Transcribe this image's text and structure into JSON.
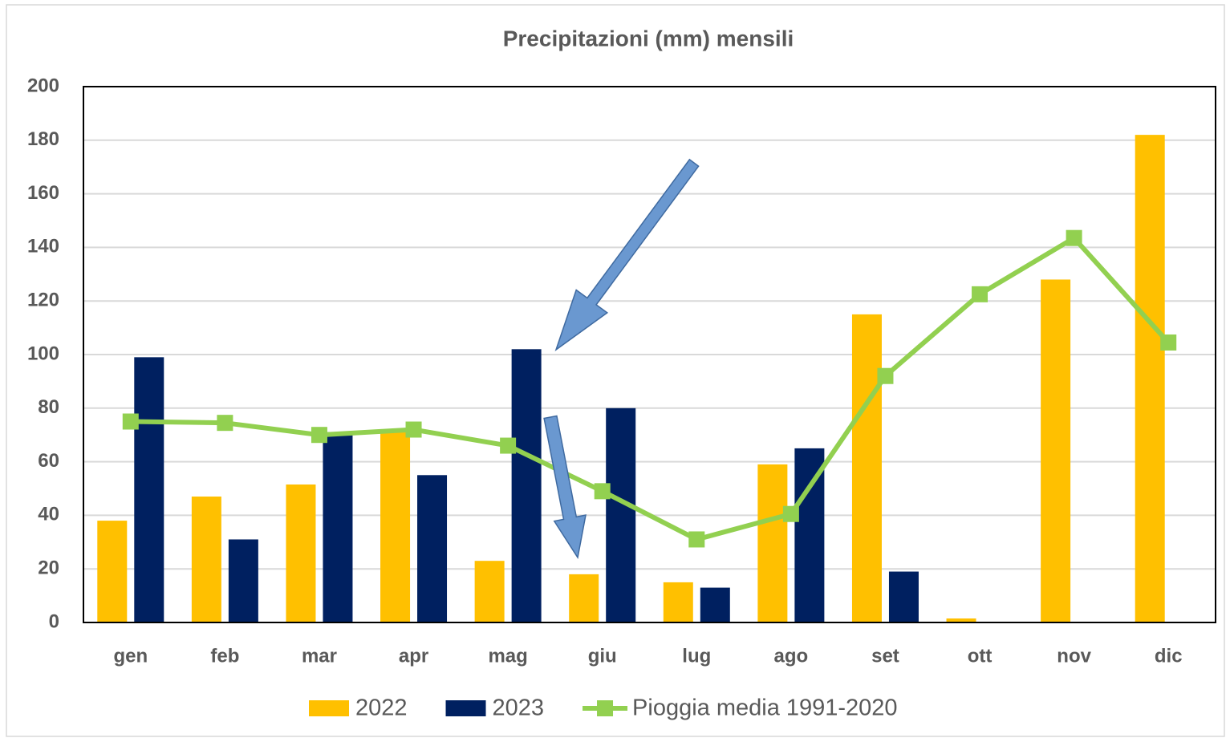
{
  "chart_data": {
    "type": "bar",
    "title": "Precipitazioni (mm) mensili",
    "categories": [
      "gen",
      "feb",
      "mar",
      "apr",
      "mag",
      "giu",
      "lug",
      "ago",
      "set",
      "ott",
      "nov",
      "dic"
    ],
    "series": [
      {
        "name": "2022",
        "color": "#ffc000",
        "type": "bar",
        "values": [
          38,
          47,
          51.5,
          71,
          23,
          18,
          15,
          59,
          115,
          1.5,
          128,
          182
        ]
      },
      {
        "name": "2023",
        "color": "#002060",
        "type": "bar",
        "values": [
          99,
          31,
          71,
          55,
          102,
          80,
          13,
          65,
          19,
          null,
          null,
          null
        ]
      },
      {
        "name": "Pioggia media 1991-2020",
        "color": "#92d050",
        "type": "line",
        "values": [
          75,
          74.5,
          70,
          72,
          66,
          49,
          31,
          40.5,
          92,
          122.5,
          143.5,
          104.5
        ]
      }
    ],
    "ylim": [
      0,
      200
    ],
    "yticks": [
      0,
      20,
      40,
      60,
      80,
      100,
      120,
      140,
      160,
      180,
      200
    ],
    "grid": true,
    "legend": "bottom"
  }
}
